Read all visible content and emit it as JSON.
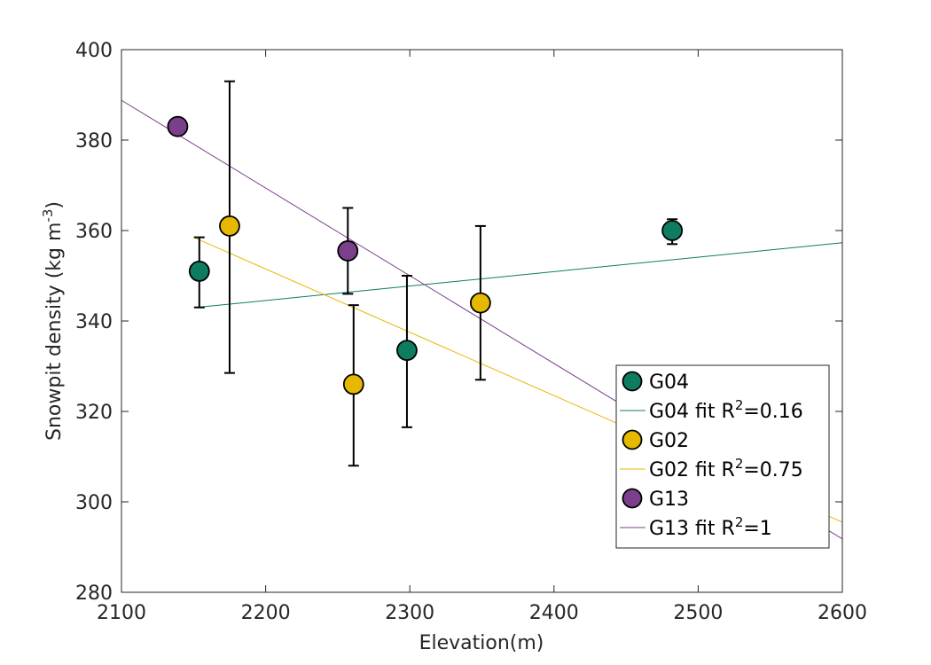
{
  "chart_data": {
    "type": "scatter",
    "xlabel": "Elevation(m)",
    "ylabel_parts": [
      "Snowpit density (kg m",
      "-3",
      ")"
    ],
    "xlim": [
      2100,
      2600
    ],
    "ylim": [
      280,
      400
    ],
    "xticks": [
      "2100",
      "2200",
      "2300",
      "2400",
      "2500",
      "2600"
    ],
    "yticks": [
      "280",
      "300",
      "320",
      "340",
      "360",
      "380",
      "400"
    ],
    "grid": false,
    "legend_position": "bottom-right",
    "series": [
      {
        "name": "G04",
        "color": "#0e7c61",
        "points": [
          {
            "x": 2154,
            "y": 351,
            "err_low": 343,
            "err_high": 358.5
          },
          {
            "x": 2298,
            "y": 333.5,
            "err_low": 316.5,
            "err_high": 350
          },
          {
            "x": 2482,
            "y": 360,
            "err_low": 357,
            "err_high": 362.5
          }
        ],
        "fit": {
          "x": [
            2152,
            2600
          ],
          "y": [
            343,
            357.3
          ]
        },
        "fit_label_prefix": "G04 fit R",
        "fit_label_sup": "2",
        "fit_label_suffix": "=0.16"
      },
      {
        "name": "G02",
        "color": "#e6b800",
        "points": [
          {
            "x": 2175,
            "y": 361,
            "err_low": 328.5,
            "err_high": 393
          },
          {
            "x": 2261,
            "y": 326,
            "err_low": 308,
            "err_high": 343.5
          },
          {
            "x": 2349,
            "y": 344,
            "err_low": 327,
            "err_high": 361
          }
        ],
        "fit": {
          "x": [
            2150,
            2600
          ],
          "y": [
            358.5,
            295.5
          ]
        },
        "fit_label_prefix": "G02 fit R",
        "fit_label_sup": "2",
        "fit_label_suffix": "=0.75"
      },
      {
        "name": "G13",
        "color": "#7b3f8c",
        "points": [
          {
            "x": 2139,
            "y": 383
          },
          {
            "x": 2257,
            "y": 355.5,
            "err_low": 346,
            "err_high": 365
          }
        ],
        "fit": {
          "x": [
            2100,
            2600
          ],
          "y": [
            388.8,
            291.8
          ]
        },
        "fit_label_prefix": "G13 fit R",
        "fit_label_sup": "2",
        "fit_label_suffix": "=1"
      }
    ]
  }
}
